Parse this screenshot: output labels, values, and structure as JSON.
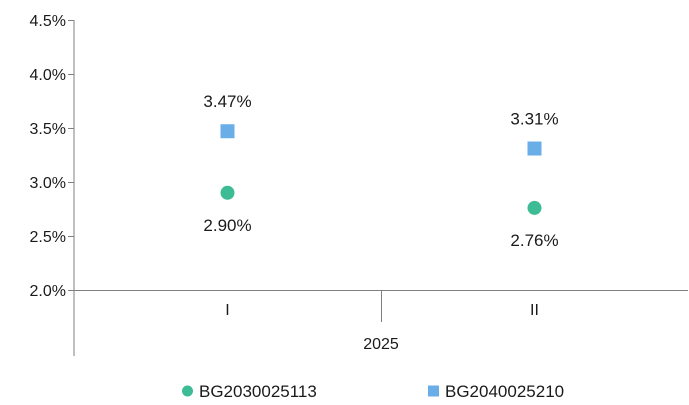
{
  "chart_data": {
    "type": "scatter",
    "title": "",
    "xlabel": "",
    "ylabel": "",
    "categories": [
      "I",
      "II"
    ],
    "group_label": "2025",
    "ylim": [
      0.02,
      0.045
    ],
    "y_ticks": [
      {
        "value": 0.02,
        "label": "2.0%"
      },
      {
        "value": 0.025,
        "label": "2.5%"
      },
      {
        "value": 0.03,
        "label": "3.0%"
      },
      {
        "value": 0.035,
        "label": "3.5%"
      },
      {
        "value": 0.04,
        "label": "4.0%"
      },
      {
        "value": 0.045,
        "label": "4.5%"
      }
    ],
    "grid": false,
    "legend_position": "bottom",
    "series": [
      {
        "name": "BG2030025113",
        "marker": "circle",
        "color": "#3dbb94",
        "label_position": "below",
        "values": [
          0.029,
          0.0276
        ],
        "labels": [
          "2.90%",
          "2.76%"
        ]
      },
      {
        "name": "BG2040025210",
        "marker": "square",
        "color": "#6aaee8",
        "label_position": "above",
        "values": [
          0.0347,
          0.0331
        ],
        "labels": [
          "3.47%",
          "3.31%"
        ]
      }
    ]
  }
}
